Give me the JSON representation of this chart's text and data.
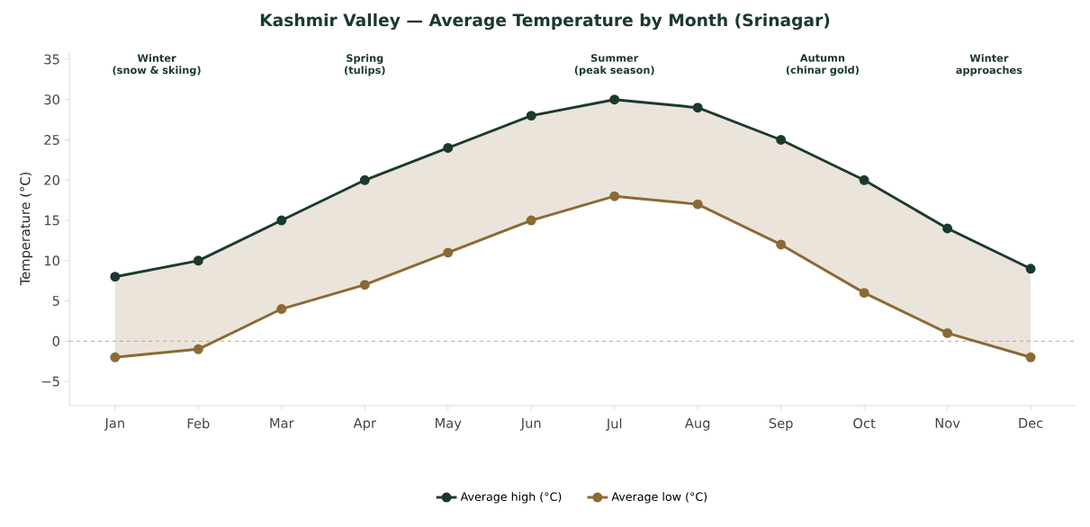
{
  "chart_data": {
    "type": "line",
    "title": "Kashmir Valley — Average Temperature by Month (Srinagar)",
    "ylabel": "Temperature (°C)",
    "categories": [
      "Jan",
      "Feb",
      "Mar",
      "Apr",
      "May",
      "Jun",
      "Jul",
      "Aug",
      "Sep",
      "Oct",
      "Nov",
      "Dec"
    ],
    "series": [
      {
        "name": "Average high (°C)",
        "color": "#1b3a2d",
        "values": [
          8,
          10,
          15,
          20,
          24,
          28,
          30,
          29,
          25,
          20,
          14,
          9
        ]
      },
      {
        "name": "Average low (°C)",
        "color": "#8b6a35",
        "values": [
          -2,
          -1,
          4,
          7,
          11,
          15,
          18,
          17,
          12,
          6,
          1,
          -2
        ],
        "lower": [
          -2,
          -1,
          4,
          7,
          11,
          15,
          18,
          17,
          12,
          6,
          1,
          -2
        ],
        "upper": [
          8,
          10,
          15,
          20,
          24,
          28,
          30,
          29,
          25,
          20,
          14,
          9
        ]
      }
    ],
    "ylim": [
      -8,
      36
    ],
    "yticks": [
      {
        "value": -5,
        "label": "−5"
      },
      0,
      5,
      10,
      15,
      20,
      25,
      30,
      35
    ],
    "ref_lines": [
      {
        "axis": "y",
        "value": 0,
        "color": "#999999",
        "line_style": "dashed"
      }
    ],
    "annotations": [
      "Winter\n(snow & skiing)",
      "Spring\n(tulips)",
      "Summer\n(peak season)",
      "Autumn\n(chinar gold)",
      "Winter\napproaches"
    ],
    "legend": "bottom",
    "grid": false,
    "marker": "circle",
    "line_style": "solid"
  }
}
